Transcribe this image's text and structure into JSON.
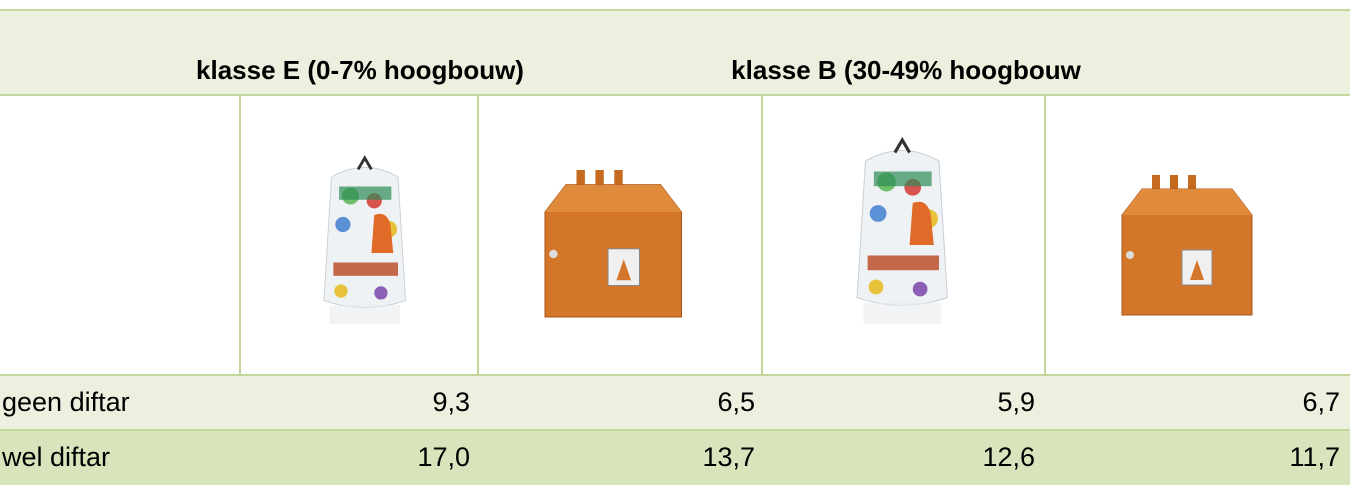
{
  "header": {
    "groups": [
      "klasse E (0-7% hoogbouw)",
      "klasse B (30-49% hoogbouw"
    ]
  },
  "table": {
    "rows": [
      [
        "geen diftar",
        "9,3",
        "6,5",
        "5,9",
        "6,7"
      ],
      [
        "wel diftar",
        "17,0",
        "13,7",
        "12,6",
        "11,7"
      ]
    ]
  }
}
